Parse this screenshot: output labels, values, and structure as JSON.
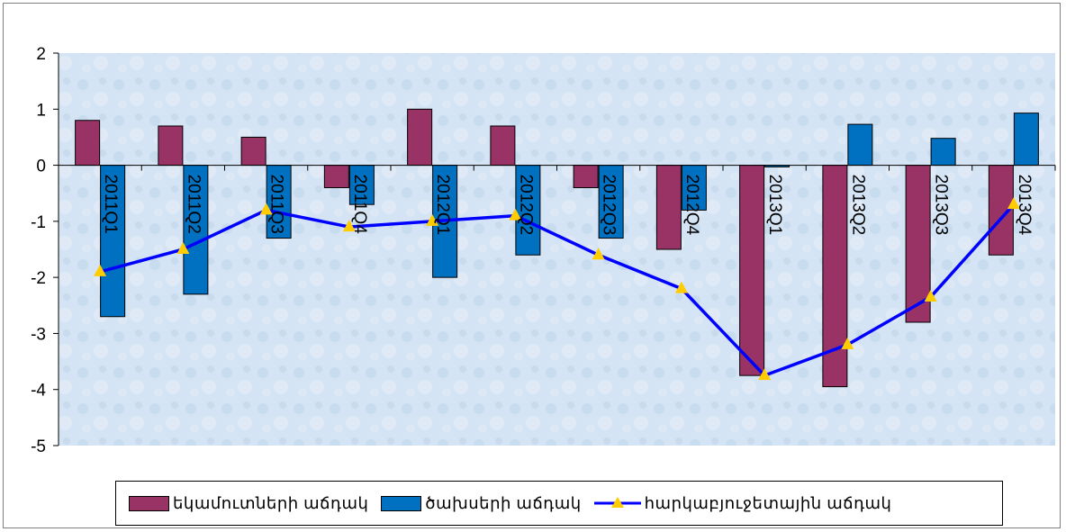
{
  "chart_data": {
    "type": "bar",
    "categories": [
      "2011Q1",
      "2011Q2",
      "2011Q3",
      "2011Q4",
      "2012Q1",
      "2012Q2",
      "2012Q3",
      "2012Q4",
      "2013Q1",
      "2013Q2",
      "2013Q3",
      "2013Q4"
    ],
    "ylim": [
      -5,
      2
    ],
    "yticks": [
      2,
      1,
      0,
      -1,
      -2,
      -3,
      -4,
      -5
    ],
    "grid": false,
    "legend_position": "bottom",
    "series": [
      {
        "name": "եկամուտների աճդակ",
        "kind": "bar",
        "color": "#993366",
        "values": [
          0.8,
          0.7,
          0.5,
          -0.4,
          1.0,
          0.7,
          -0.4,
          -1.5,
          -3.75,
          -3.95,
          -2.8,
          -1.6
        ]
      },
      {
        "name": "ծախսերի աճդակ",
        "kind": "bar",
        "color": "#0070c0",
        "values": [
          -2.7,
          -2.3,
          -1.3,
          -0.7,
          -2.0,
          -1.6,
          -1.3,
          -0.8,
          -0.03,
          0.73,
          0.48,
          0.93
        ]
      },
      {
        "name": "հարկաբյուջետային աճդակ",
        "kind": "line",
        "color": "#0000ff",
        "marker_color": "#ffcc00",
        "values": [
          -1.9,
          -1.5,
          -0.8,
          -1.1,
          -1.0,
          -0.9,
          -1.6,
          -2.2,
          -3.75,
          -3.2,
          -2.35,
          -0.7
        ]
      }
    ]
  }
}
